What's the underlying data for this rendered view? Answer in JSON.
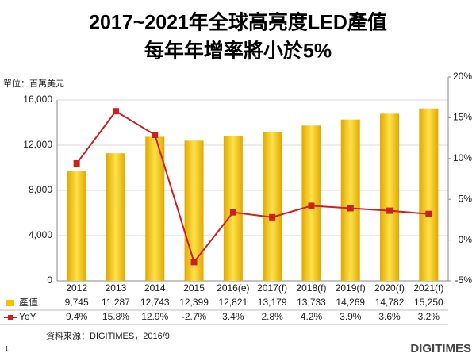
{
  "chart_data": {
    "type": "bar-line",
    "title": "2017~2021年全球高亮度LED產值",
    "subtitle": "每年年增率將小於5%",
    "unit_label": "單位：百萬美元",
    "source": "資料來源：DIGITIMES，2016/9",
    "logo": "DIGITIMES",
    "page_number": "1",
    "categories": [
      "2012",
      "2013",
      "2014",
      "2015",
      "2016(e)",
      "2017(f)",
      "2018(f)",
      "2019(f)",
      "2020(f)",
      "2021(f)"
    ],
    "series": [
      {
        "name": "產值",
        "color": "#f2c200",
        "values": [
          9745,
          11287,
          12743,
          12399,
          12821,
          13179,
          13733,
          14269,
          14782,
          15250
        ],
        "value_labels": [
          "9,745",
          "11,287",
          "12,743",
          "12,399",
          "12,821",
          "13,179",
          "13,733",
          "14,269",
          "14,782",
          "15,250"
        ]
      },
      {
        "name": "YoY",
        "color": "#cc1f1f",
        "axis": "y2",
        "values": [
          9.4,
          15.8,
          12.9,
          -2.7,
          3.4,
          2.8,
          4.2,
          3.9,
          3.6,
          3.2
        ],
        "value_labels": [
          "9.4%",
          "15.8%",
          "12.9%",
          "-2.7%",
          "3.4%",
          "2.8%",
          "4.2%",
          "3.9%",
          "3.6%",
          "3.2%"
        ]
      }
    ],
    "ylim": [
      0,
      16000
    ],
    "yticks": [
      0,
      {
        "value": 4000,
        "label": "4,000"
      },
      {
        "value": 8000,
        "label": "8,000"
      },
      {
        "value": 12000,
        "label": "12,000"
      },
      {
        "value": 16000,
        "label": "16,000"
      }
    ],
    "y2lim": [
      -5,
      20
    ],
    "y2ticks": [
      {
        "value": -5,
        "label": "-5%"
      },
      {
        "value": 0,
        "label": "0%"
      },
      {
        "value": 5,
        "label": "5%"
      },
      {
        "value": 10,
        "label": "10%"
      },
      {
        "value": 15,
        "label": "15%"
      },
      {
        "value": 20,
        "label": "20%"
      }
    ],
    "grid": true
  }
}
